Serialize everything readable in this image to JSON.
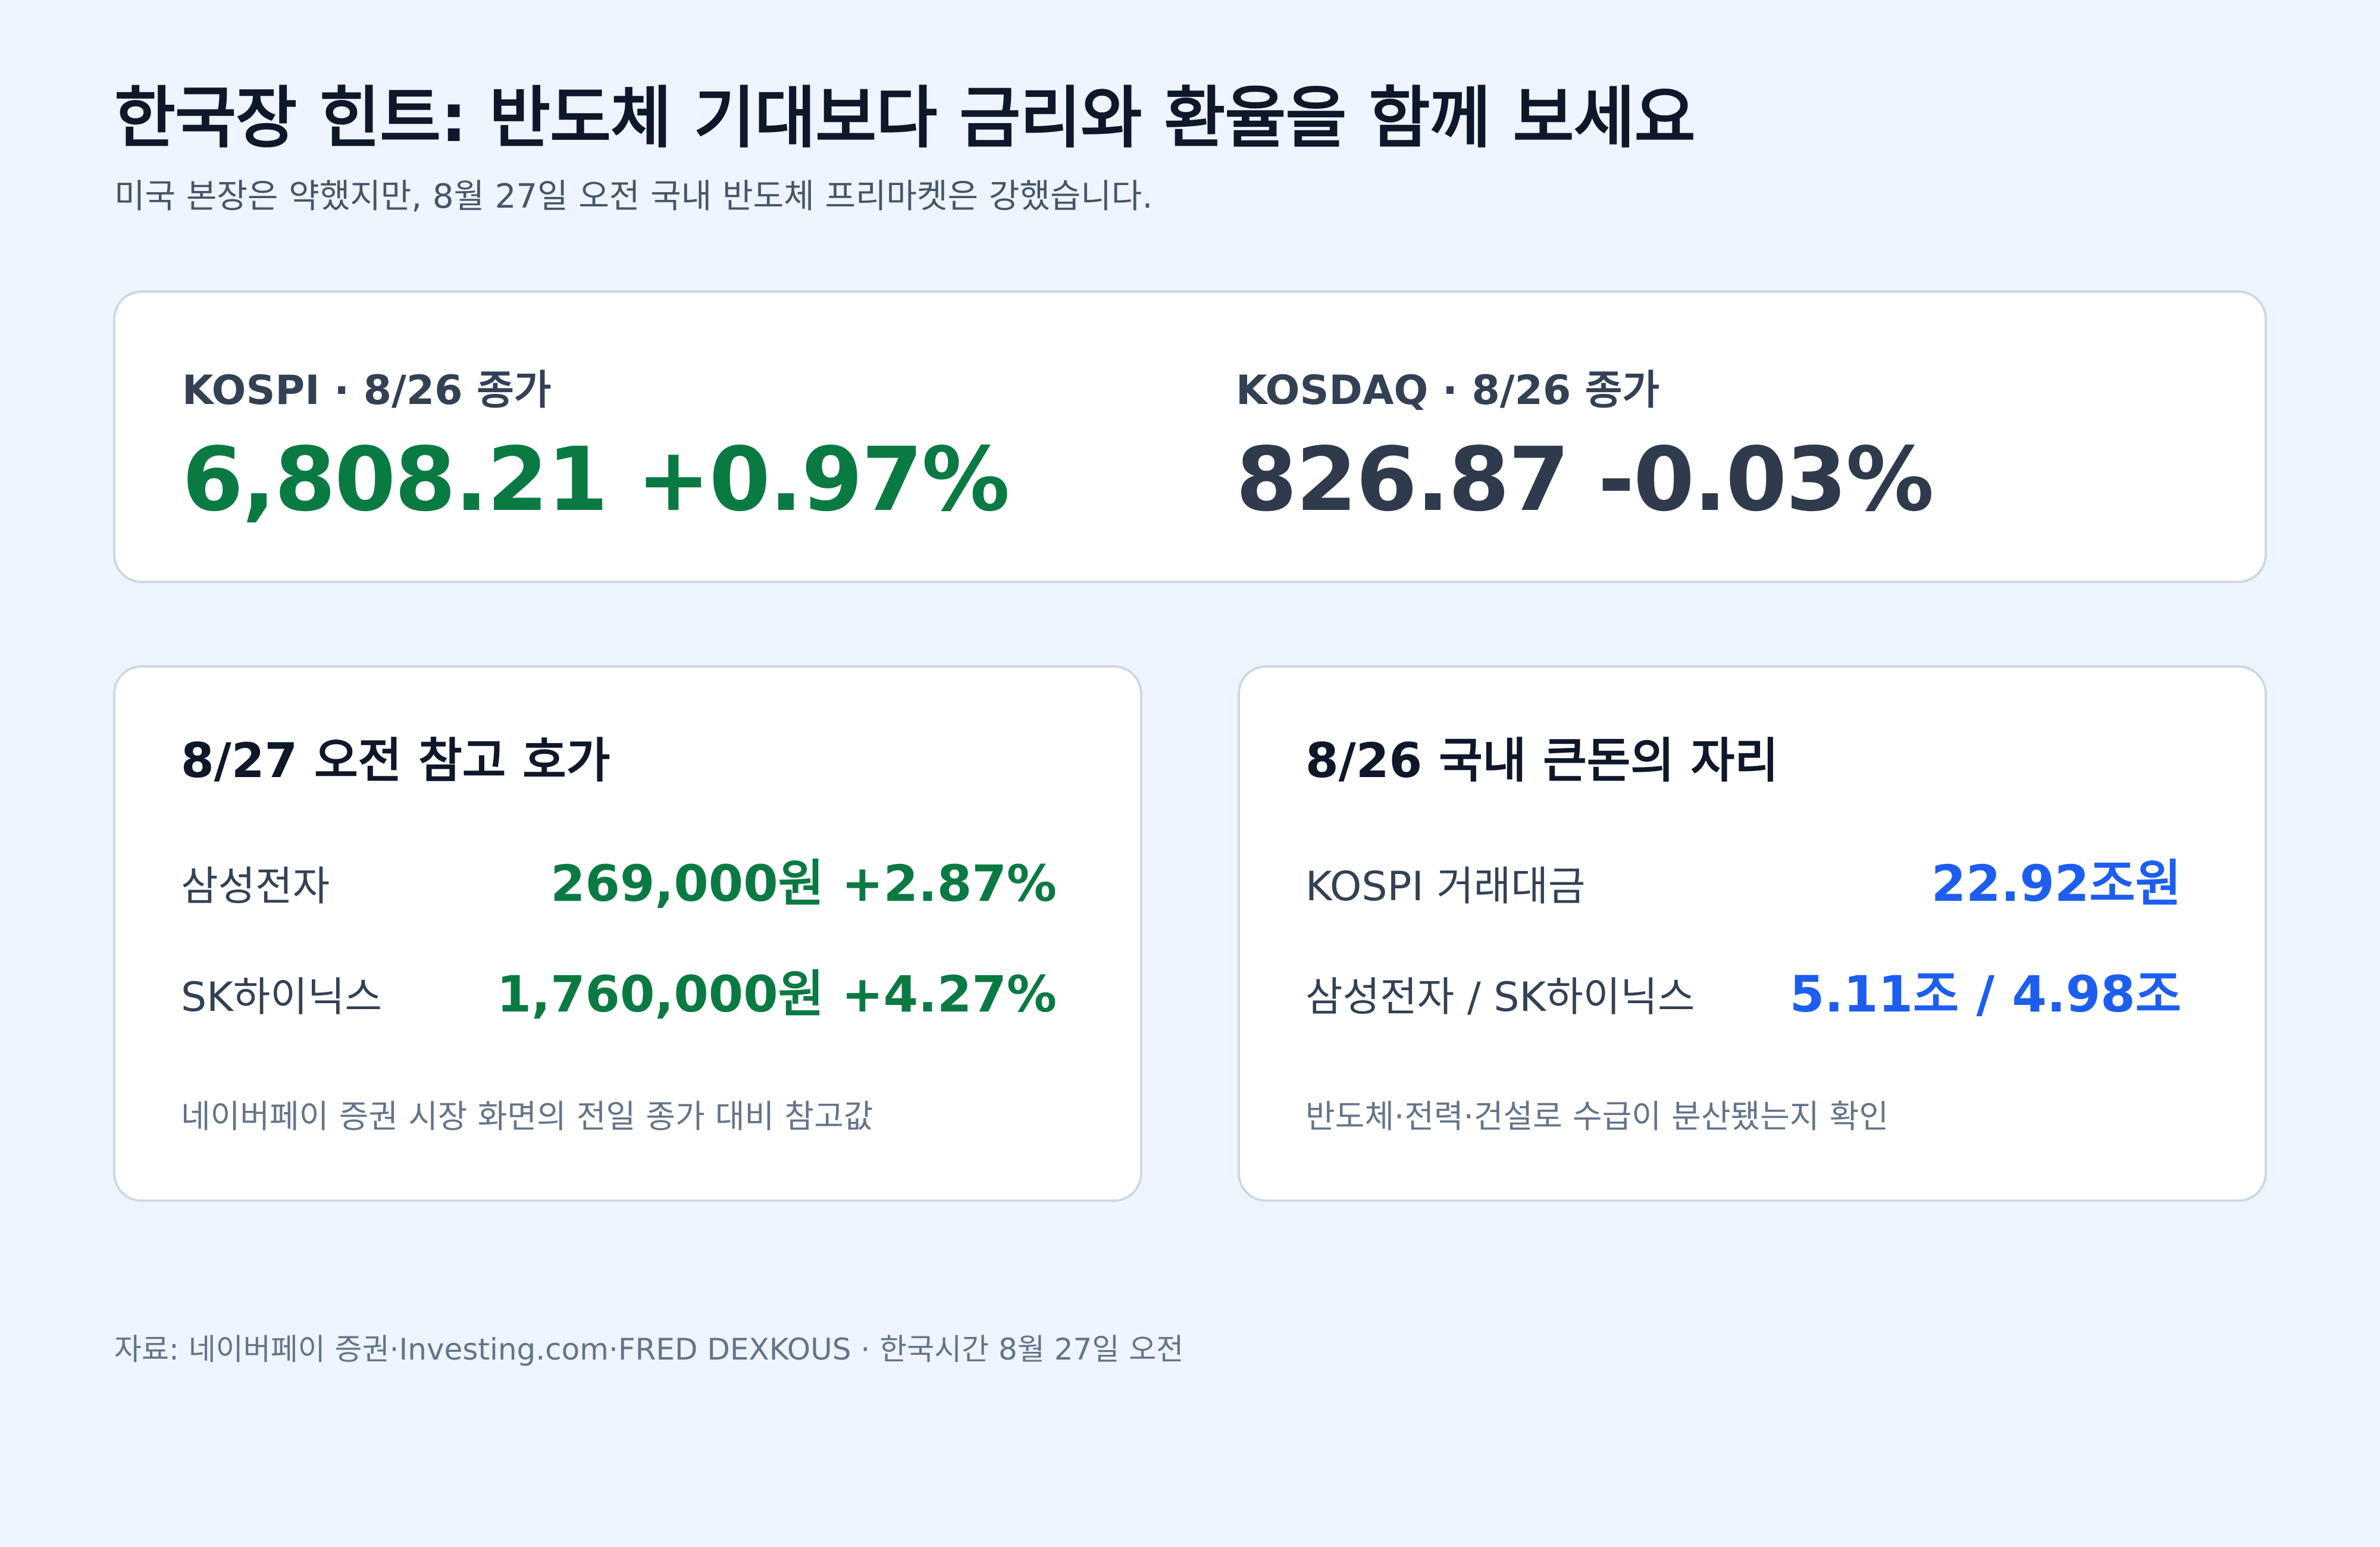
{
  "header": {
    "title": "한국장 힌트: 반도체 기대보다 금리와 환율을 함께 보세요",
    "subtitle": "미국 본장은 약했지만, 8월 27일 오전 국내 반도체 프리마켓은 강했습니다."
  },
  "indices": [
    {
      "label": "KOSPI · 8/26 종가",
      "value": "6,808.21 +0.97%",
      "color": "#0a7a43"
    },
    {
      "label": "KOSDAQ · 8/26 종가",
      "value": "826.87 -0.03%",
      "color": "#2f3a4d"
    }
  ],
  "premarket": {
    "title": "8/27 오전 참고 호가",
    "rows": [
      {
        "label": "삼성전자",
        "value": "269,000원 +2.87%"
      },
      {
        "label": "SK하이닉스",
        "value": "1,760,000원 +4.27%"
      }
    ],
    "note": "네이버페이 증권 시장 화면의 전일 종가 대비 참고값",
    "value_color": "#0a7a43"
  },
  "big_money": {
    "title": "8/26 국내 큰돈의 자리",
    "rows": [
      {
        "label": "KOSPI 거래대금",
        "value": "22.92조원"
      },
      {
        "label": "삼성전자 / SK하이닉스",
        "value": "5.11조 / 4.98조"
      }
    ],
    "note": "반도체·전력·건설로 수급이 분산됐는지 확인",
    "value_color": "#1d5ef0"
  },
  "footer": {
    "source": "자료: 네이버페이 증권·Investing.com·FRED DEXKOUS · 한국시간 8월 27일 오전"
  }
}
